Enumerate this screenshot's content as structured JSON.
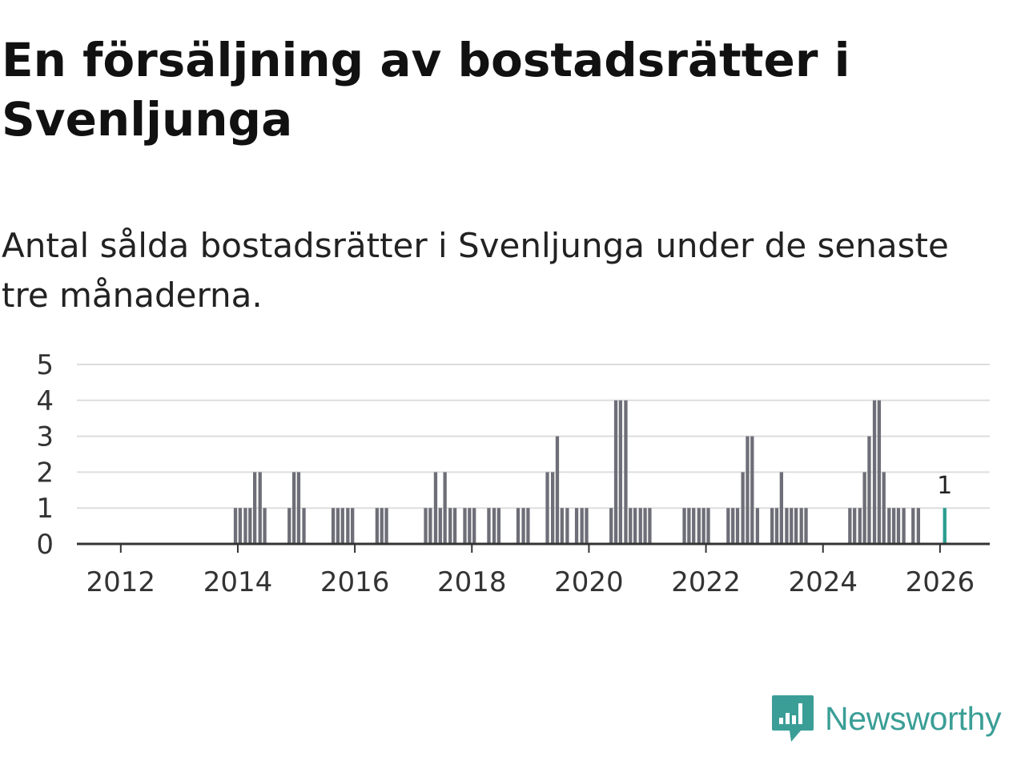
{
  "header": {
    "title": "En försäljning av bostadsrätter i Svenljunga",
    "subtitle": "Antal sålda bostadsrätter i Svenljunga under de senaste tre månaderna."
  },
  "brand": {
    "name": "Newsworthy",
    "icon": "newsworthy-logo-icon",
    "color": "#3a9e96"
  },
  "colors": {
    "bar": "#6e6e78",
    "highlight": "#2a9d8f",
    "grid": "#dddddd",
    "axis": "#333333",
    "text": "#333333"
  },
  "chart_data": {
    "type": "bar",
    "title": "",
    "xlabel": "",
    "ylabel": "",
    "ylim": [
      0,
      5
    ],
    "yticks": [
      "0",
      "1",
      "2",
      "3",
      "4",
      "5"
    ],
    "xlim": [
      2011.25,
      2026.85
    ],
    "xticks": [
      "2012",
      "2014",
      "2016",
      "2018",
      "2020",
      "2022",
      "2024",
      "2026"
    ],
    "grid": true,
    "bars": [
      {
        "x": 2013.96,
        "value": 1
      },
      {
        "x": 2014.04,
        "value": 1
      },
      {
        "x": 2014.13,
        "value": 1
      },
      {
        "x": 2014.21,
        "value": 1
      },
      {
        "x": 2014.29,
        "value": 2
      },
      {
        "x": 2014.38,
        "value": 2
      },
      {
        "x": 2014.46,
        "value": 1
      },
      {
        "x": 2014.88,
        "value": 1
      },
      {
        "x": 2014.96,
        "value": 2
      },
      {
        "x": 2015.04,
        "value": 2
      },
      {
        "x": 2015.13,
        "value": 1
      },
      {
        "x": 2015.63,
        "value": 1
      },
      {
        "x": 2015.71,
        "value": 1
      },
      {
        "x": 2015.79,
        "value": 1
      },
      {
        "x": 2015.88,
        "value": 1
      },
      {
        "x": 2015.96,
        "value": 1
      },
      {
        "x": 2016.38,
        "value": 1
      },
      {
        "x": 2016.46,
        "value": 1
      },
      {
        "x": 2016.54,
        "value": 1
      },
      {
        "x": 2017.21,
        "value": 1
      },
      {
        "x": 2017.29,
        "value": 1
      },
      {
        "x": 2017.38,
        "value": 2
      },
      {
        "x": 2017.46,
        "value": 1
      },
      {
        "x": 2017.54,
        "value": 2
      },
      {
        "x": 2017.63,
        "value": 1
      },
      {
        "x": 2017.71,
        "value": 1
      },
      {
        "x": 2017.88,
        "value": 1
      },
      {
        "x": 2017.96,
        "value": 1
      },
      {
        "x": 2018.04,
        "value": 1
      },
      {
        "x": 2018.29,
        "value": 1
      },
      {
        "x": 2018.38,
        "value": 1
      },
      {
        "x": 2018.46,
        "value": 1
      },
      {
        "x": 2018.79,
        "value": 1
      },
      {
        "x": 2018.88,
        "value": 1
      },
      {
        "x": 2018.96,
        "value": 1
      },
      {
        "x": 2019.29,
        "value": 2
      },
      {
        "x": 2019.38,
        "value": 2
      },
      {
        "x": 2019.46,
        "value": 3
      },
      {
        "x": 2019.54,
        "value": 1
      },
      {
        "x": 2019.63,
        "value": 1
      },
      {
        "x": 2019.79,
        "value": 1
      },
      {
        "x": 2019.88,
        "value": 1
      },
      {
        "x": 2019.96,
        "value": 1
      },
      {
        "x": 2020.38,
        "value": 1
      },
      {
        "x": 2020.46,
        "value": 4
      },
      {
        "x": 2020.54,
        "value": 4
      },
      {
        "x": 2020.63,
        "value": 4
      },
      {
        "x": 2020.71,
        "value": 1
      },
      {
        "x": 2020.79,
        "value": 1
      },
      {
        "x": 2020.88,
        "value": 1
      },
      {
        "x": 2020.96,
        "value": 1
      },
      {
        "x": 2021.04,
        "value": 1
      },
      {
        "x": 2021.63,
        "value": 1
      },
      {
        "x": 2021.71,
        "value": 1
      },
      {
        "x": 2021.79,
        "value": 1
      },
      {
        "x": 2021.88,
        "value": 1
      },
      {
        "x": 2021.96,
        "value": 1
      },
      {
        "x": 2022.04,
        "value": 1
      },
      {
        "x": 2022.38,
        "value": 1
      },
      {
        "x": 2022.46,
        "value": 1
      },
      {
        "x": 2022.54,
        "value": 1
      },
      {
        "x": 2022.63,
        "value": 2
      },
      {
        "x": 2022.71,
        "value": 3
      },
      {
        "x": 2022.79,
        "value": 3
      },
      {
        "x": 2022.88,
        "value": 1
      },
      {
        "x": 2023.13,
        "value": 1
      },
      {
        "x": 2023.21,
        "value": 1
      },
      {
        "x": 2023.29,
        "value": 2
      },
      {
        "x": 2023.38,
        "value": 1
      },
      {
        "x": 2023.46,
        "value": 1
      },
      {
        "x": 2023.54,
        "value": 1
      },
      {
        "x": 2023.63,
        "value": 1
      },
      {
        "x": 2023.71,
        "value": 1
      },
      {
        "x": 2024.46,
        "value": 1
      },
      {
        "x": 2024.54,
        "value": 1
      },
      {
        "x": 2024.63,
        "value": 1
      },
      {
        "x": 2024.71,
        "value": 2
      },
      {
        "x": 2024.79,
        "value": 3
      },
      {
        "x": 2024.88,
        "value": 4
      },
      {
        "x": 2024.96,
        "value": 4
      },
      {
        "x": 2025.04,
        "value": 2
      },
      {
        "x": 2025.13,
        "value": 1
      },
      {
        "x": 2025.21,
        "value": 1
      },
      {
        "x": 2025.29,
        "value": 1
      },
      {
        "x": 2025.38,
        "value": 1
      },
      {
        "x": 2025.54,
        "value": 1
      },
      {
        "x": 2025.63,
        "value": 1
      },
      {
        "x": 2026.08,
        "value": 1,
        "highlight": true
      }
    ],
    "annotations": [
      {
        "x": 2026.08,
        "value": 1,
        "text": "1"
      }
    ]
  }
}
